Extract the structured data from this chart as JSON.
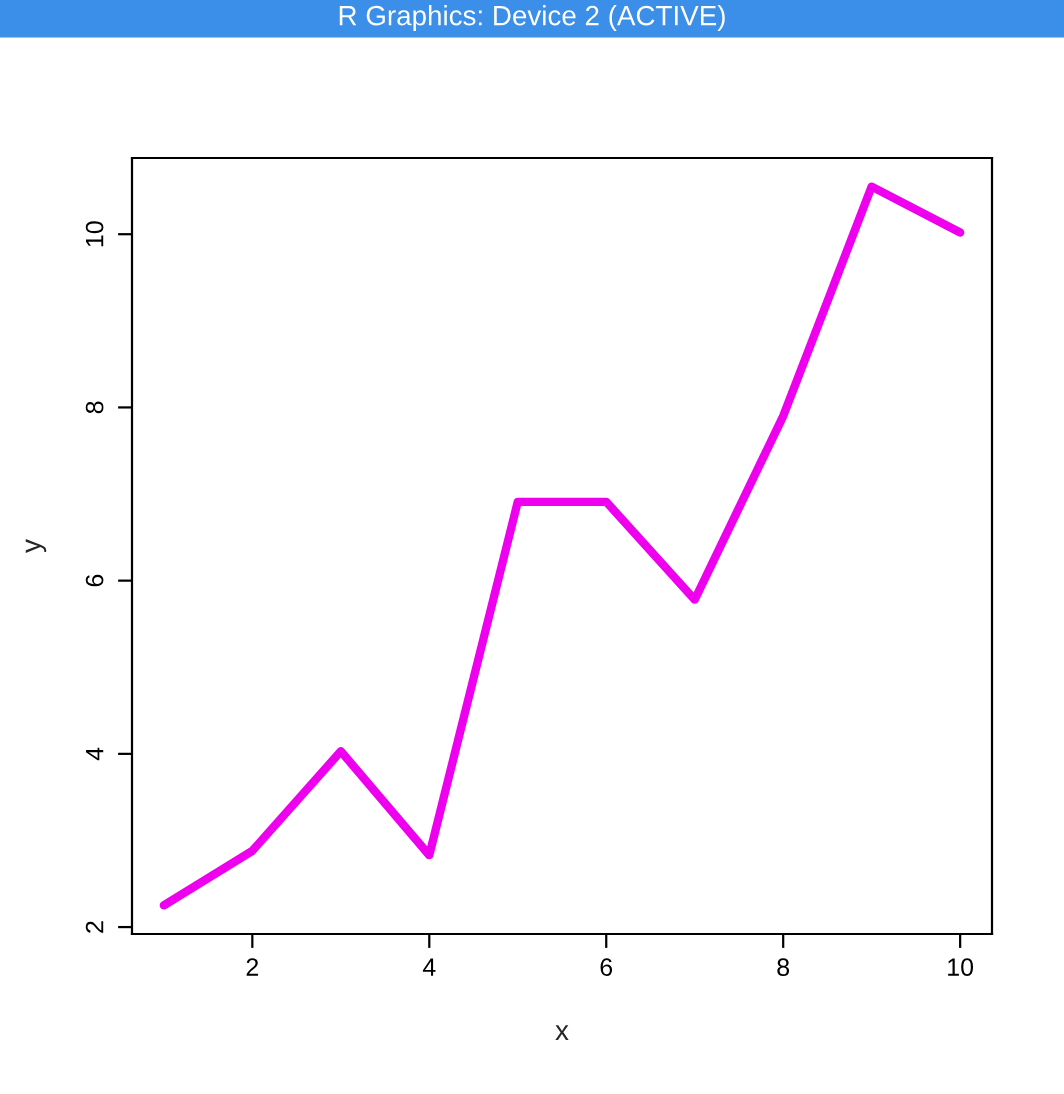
{
  "chart_data": {
    "type": "line",
    "title": "R Graphics: Device 2 (ACTIVE)",
    "xlabel": "x",
    "ylabel": "y",
    "x": [
      1,
      2,
      3,
      4,
      5,
      6,
      7,
      8,
      9,
      10
    ],
    "series": [
      {
        "color": "#ee00ee",
        "values": [
          2.25,
          2.88,
          4.03,
          2.83,
          6.91,
          6.91,
          5.78,
          7.9,
          10.55,
          10.02
        ]
      }
    ],
    "xlim": [
      0.64,
      10.36
    ],
    "ylim": [
      1.92,
      10.88
    ],
    "xticks": [
      2,
      4,
      6,
      8,
      10
    ],
    "yticks": [
      2,
      4,
      6,
      8,
      10
    ],
    "grid": false,
    "legend": false,
    "marker": "none",
    "line_style": "solid"
  }
}
